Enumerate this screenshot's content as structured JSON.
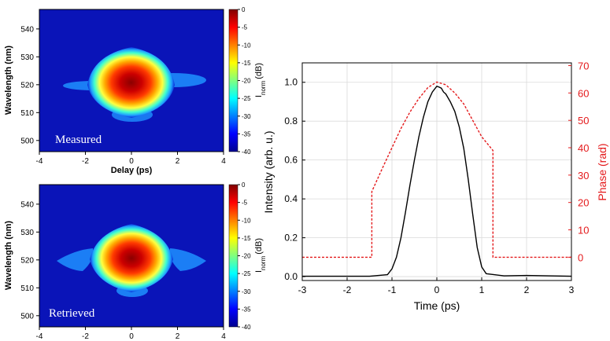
{
  "chart_data": [
    {
      "type": "heatmap",
      "panel_label": "Measured",
      "xlabel": "Delay (ps)",
      "ylabel": "Wavelength (nm)",
      "xlim": [
        -4,
        4
      ],
      "ylim": [
        496,
        547
      ],
      "x_ticks": [
        -4,
        -2,
        0,
        2,
        4
      ],
      "y_ticks": [
        500,
        510,
        520,
        530,
        540
      ],
      "colorbar_label": "I",
      "colorbar_label_sub": "norm",
      "colorbar_label_unit": "(dB)",
      "colorbar_ticks": [
        0,
        -5,
        -10,
        -15,
        -20,
        -25,
        -30,
        -35,
        -40
      ],
      "colorbar_range": [
        -40,
        0
      ],
      "colormap": "jet",
      "peak": {
        "x": 0,
        "y": 520
      },
      "extent": {
        "x_half_width_ps": 1.6,
        "wavelength_min": 512,
        "wavelength_max": 535
      }
    },
    {
      "type": "heatmap",
      "panel_label": "Retrieved",
      "xlabel": "",
      "ylabel": "Wavelength (nm)",
      "xlim": [
        -4,
        4
      ],
      "ylim": [
        496,
        547
      ],
      "x_ticks": [
        -4,
        -2,
        0,
        2,
        4
      ],
      "y_ticks": [
        500,
        510,
        520,
        530,
        540
      ],
      "colorbar_label": "I",
      "colorbar_label_sub": "norm",
      "colorbar_label_unit": "(dB)",
      "colorbar_ticks": [
        0,
        -5,
        -10,
        -15,
        -20,
        -25,
        -30,
        -35,
        -40
      ],
      "colorbar_range": [
        -40,
        0
      ],
      "colormap": "jet",
      "peak": {
        "x": 0,
        "y": 520
      },
      "extent": {
        "x_half_width_ps": 1.6,
        "wavelength_min": 512,
        "wavelength_max": 535
      }
    },
    {
      "type": "line",
      "xlabel": "Time (ps)",
      "ylabel": "Intensity (arb. u.)",
      "y2label": "Phase (rad)",
      "xlim": [
        -3,
        3
      ],
      "ylim": [
        -0.02,
        1.1
      ],
      "y2lim": [
        -8.5,
        71
      ],
      "x_ticks": [
        -3,
        -2,
        -1,
        0,
        1,
        2,
        3
      ],
      "y_ticks": [
        0.0,
        0.2,
        0.4,
        0.6,
        0.8,
        1.0
      ],
      "y_tick_labels": [
        "0.0",
        "0.2",
        "0.4",
        "0.6",
        "0.8",
        "1.0"
      ],
      "y2_ticks": [
        0,
        10,
        20,
        30,
        40,
        50,
        60,
        70
      ],
      "grid": true,
      "series": [
        {
          "axis": "left",
          "color": "#000000",
          "style": "solid",
          "x": [
            -3,
            -1.5,
            -1.1,
            -1.0,
            -0.9,
            -0.8,
            -0.7,
            -0.6,
            -0.5,
            -0.4,
            -0.3,
            -0.2,
            -0.1,
            0.0,
            0.05,
            0.1,
            0.15,
            0.2,
            0.3,
            0.4,
            0.5,
            0.6,
            0.7,
            0.8,
            0.9,
            1.0,
            1.1,
            1.5,
            2.0,
            3.0
          ],
          "y": [
            0.002,
            0.002,
            0.01,
            0.04,
            0.1,
            0.2,
            0.33,
            0.47,
            0.6,
            0.72,
            0.82,
            0.9,
            0.95,
            0.98,
            0.975,
            0.97,
            0.95,
            0.94,
            0.9,
            0.85,
            0.77,
            0.66,
            0.5,
            0.32,
            0.15,
            0.05,
            0.015,
            0.004,
            0.006,
            0.002
          ]
        },
        {
          "axis": "right",
          "color": "#e41a1c",
          "style": "dashed",
          "x": [
            -3,
            -1.45,
            -1.45,
            -1.2,
            -1.0,
            -0.8,
            -0.6,
            -0.4,
            -0.2,
            0.0,
            0.2,
            0.4,
            0.6,
            0.8,
            1.0,
            1.25,
            1.25,
            3
          ],
          "y": [
            0,
            0,
            24,
            33,
            40,
            47,
            53,
            58,
            62,
            64,
            63,
            60,
            56,
            50,
            44,
            39,
            0,
            0
          ]
        }
      ]
    }
  ]
}
